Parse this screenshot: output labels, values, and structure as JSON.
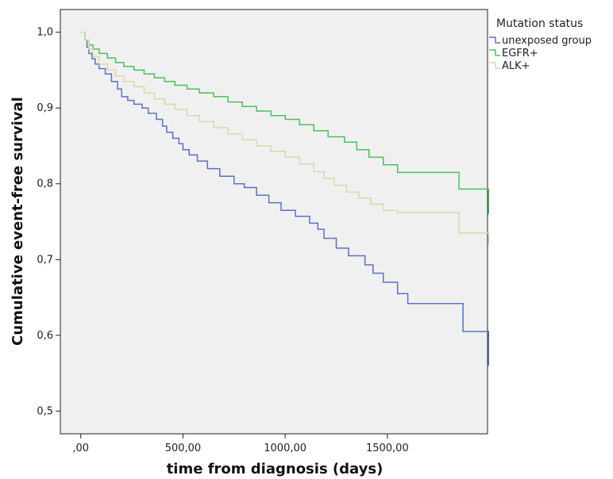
{
  "chart_data": {
    "type": "line",
    "step": true,
    "xlabel": "time from diagnosis (days)",
    "ylabel": "Cumulative event-free survival",
    "xlim": [
      -100,
      1990
    ],
    "ylim": [
      0.47,
      1.03
    ],
    "xticks": [
      0,
      500,
      1000,
      1500
    ],
    "xtick_labels": [
      ",00",
      "500,00",
      "1000,00",
      "1500,00"
    ],
    "yticks": [
      0.5,
      0.6,
      0.7,
      0.8,
      0.9,
      1.0
    ],
    "ytick_labels": [
      "0,5",
      "0,6",
      "0,7",
      "0,8",
      "0,9",
      "1,0"
    ],
    "plot_background": "#f0f0f0",
    "grid": false,
    "legend": {
      "title": "Mutation status",
      "placement": "outside-right-top"
    },
    "series": [
      {
        "name": "unexposed group",
        "color": "#5b72c0",
        "x": [
          0,
          20,
          30,
          40,
          55,
          70,
          90,
          120,
          150,
          180,
          200,
          230,
          260,
          300,
          330,
          370,
          400,
          420,
          450,
          480,
          500,
          530,
          570,
          620,
          680,
          750,
          800,
          860,
          920,
          980,
          1050,
          1120,
          1160,
          1190,
          1250,
          1310,
          1390,
          1430,
          1480,
          1550,
          1600,
          1700,
          1790,
          1870,
          1950,
          1995
        ],
        "y": [
          1.0,
          0.99,
          0.98,
          0.972,
          0.965,
          0.958,
          0.952,
          0.945,
          0.935,
          0.925,
          0.915,
          0.91,
          0.905,
          0.9,
          0.893,
          0.885,
          0.876,
          0.868,
          0.86,
          0.853,
          0.845,
          0.838,
          0.83,
          0.82,
          0.81,
          0.8,
          0.795,
          0.785,
          0.775,
          0.765,
          0.757,
          0.748,
          0.74,
          0.728,
          0.715,
          0.705,
          0.693,
          0.682,
          0.67,
          0.655,
          0.642,
          0.642,
          0.642,
          0.605,
          0.605,
          0.56
        ]
      },
      {
        "name": "EGFR+",
        "color": "#4cc05a",
        "x": [
          0,
          20,
          40,
          60,
          90,
          130,
          170,
          210,
          260,
          310,
          360,
          410,
          460,
          520,
          580,
          650,
          720,
          790,
          860,
          930,
          1000,
          1070,
          1140,
          1210,
          1290,
          1350,
          1410,
          1480,
          1550,
          1650,
          1750,
          1850,
          1950,
          1995
        ],
        "y": [
          1.0,
          0.99,
          0.983,
          0.978,
          0.972,
          0.966,
          0.96,
          0.955,
          0.95,
          0.945,
          0.94,
          0.935,
          0.93,
          0.925,
          0.92,
          0.915,
          0.908,
          0.902,
          0.896,
          0.89,
          0.885,
          0.878,
          0.87,
          0.862,
          0.855,
          0.845,
          0.835,
          0.825,
          0.815,
          0.815,
          0.815,
          0.793,
          0.793,
          0.76
        ]
      },
      {
        "name": "ALK+",
        "color": "#d8d9a6",
        "x": [
          0,
          20,
          40,
          60,
          90,
          130,
          170,
          210,
          260,
          310,
          360,
          410,
          460,
          520,
          580,
          650,
          720,
          790,
          860,
          930,
          1000,
          1070,
          1140,
          1190,
          1240,
          1300,
          1360,
          1420,
          1480,
          1550,
          1650,
          1750,
          1850,
          1950,
          1995
        ],
        "y": [
          1.0,
          0.99,
          0.978,
          0.968,
          0.958,
          0.95,
          0.942,
          0.935,
          0.928,
          0.92,
          0.912,
          0.905,
          0.898,
          0.89,
          0.882,
          0.874,
          0.866,
          0.858,
          0.85,
          0.843,
          0.835,
          0.826,
          0.816,
          0.807,
          0.798,
          0.789,
          0.781,
          0.773,
          0.765,
          0.762,
          0.762,
          0.762,
          0.735,
          0.735,
          0.72
        ]
      }
    ]
  }
}
